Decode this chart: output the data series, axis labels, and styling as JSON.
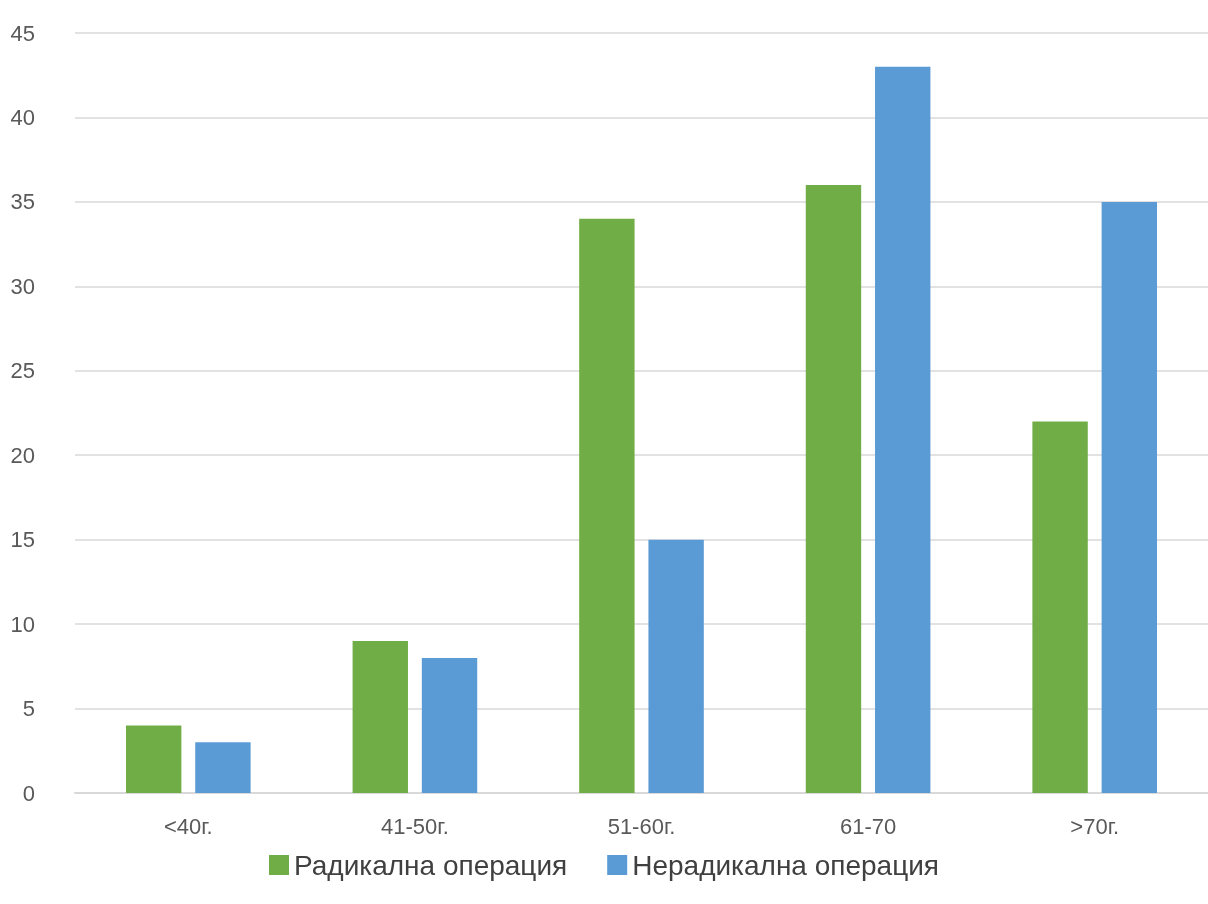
{
  "chart_data": {
    "type": "bar",
    "categories": [
      "<40г.",
      "41-50г.",
      "51-60г.",
      "61-70",
      ">70г."
    ],
    "series": [
      {
        "name": "Радикална операция",
        "color": "#70ad47",
        "values": [
          4,
          9,
          34,
          36,
          22
        ]
      },
      {
        "name": "Нерадикална операция",
        "color": "#5b9bd5",
        "values": [
          3,
          8,
          15,
          43,
          35
        ]
      }
    ],
    "ylim": [
      0,
      45
    ],
    "yticks": [
      0,
      5,
      10,
      15,
      20,
      25,
      30,
      35,
      40,
      45
    ],
    "grid": "y",
    "legend": "bottom"
  }
}
